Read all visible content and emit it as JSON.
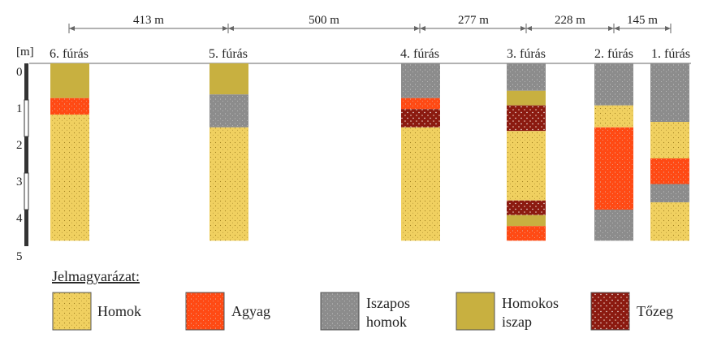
{
  "materials": {
    "homok": {
      "label_lines": [
        "Homok"
      ],
      "color": "#F0D060",
      "texture": "dots-dark"
    },
    "agyag": {
      "label_lines": [
        "Agyag"
      ],
      "color": "#FF4A14",
      "texture": "dots-light"
    },
    "iszapos": {
      "label_lines": [
        "Iszapos",
        "homok"
      ],
      "color": "#8C8C8C",
      "texture": "dots-light"
    },
    "homokos": {
      "label_lines": [
        "Homokos",
        "iszap"
      ],
      "color": "#C8B040",
      "texture": "none"
    },
    "tozeg": {
      "label_lines": [
        "Tőzeg"
      ],
      "color": "#8B1A10",
      "texture": "dots-white"
    }
  },
  "depth_axis": {
    "unit_label": "[m]",
    "ticks": [
      "0",
      "1",
      "2",
      "3",
      "4",
      "5"
    ],
    "max_depth_m": 5
  },
  "boreholes": [
    {
      "name": "6. fúrás",
      "layers": [
        {
          "material": "homokos",
          "from": 0.0,
          "to": 0.95
        },
        {
          "material": "agyag",
          "from": 0.95,
          "to": 1.4
        },
        {
          "material": "homok",
          "from": 1.4,
          "to": 4.85
        }
      ]
    },
    {
      "name": "5. fúrás",
      "layers": [
        {
          "material": "homokos",
          "from": 0.0,
          "to": 0.85
        },
        {
          "material": "iszapos",
          "from": 0.85,
          "to": 1.75
        },
        {
          "material": "homok",
          "from": 1.75,
          "to": 4.85
        }
      ]
    },
    {
      "name": "4. fúrás",
      "layers": [
        {
          "material": "iszapos",
          "from": 0.0,
          "to": 0.95
        },
        {
          "material": "agyag",
          "from": 0.95,
          "to": 1.25
        },
        {
          "material": "tozeg",
          "from": 1.25,
          "to": 1.75
        },
        {
          "material": "homok",
          "from": 1.75,
          "to": 4.85
        }
      ]
    },
    {
      "name": "3. fúrás",
      "layers": [
        {
          "material": "iszapos",
          "from": 0.0,
          "to": 0.75
        },
        {
          "material": "homokos",
          "from": 0.75,
          "to": 1.15
        },
        {
          "material": "tozeg",
          "from": 1.15,
          "to": 1.85
        },
        {
          "material": "homok",
          "from": 1.85,
          "to": 3.75
        },
        {
          "material": "tozeg",
          "from": 3.75,
          "to": 4.15
        },
        {
          "material": "homokos",
          "from": 4.15,
          "to": 4.45
        },
        {
          "material": "agyag",
          "from": 4.45,
          "to": 4.85
        }
      ]
    },
    {
      "name": "2. fúrás",
      "layers": [
        {
          "material": "iszapos",
          "from": 0.0,
          "to": 1.15
        },
        {
          "material": "homok",
          "from": 1.15,
          "to": 1.75
        },
        {
          "material": "agyag",
          "from": 1.75,
          "to": 4.0
        },
        {
          "material": "iszapos",
          "from": 4.0,
          "to": 4.85
        }
      ]
    },
    {
      "name": "1. fúrás",
      "layers": [
        {
          "material": "iszapos",
          "from": 0.0,
          "to": 1.6
        },
        {
          "material": "homok",
          "from": 1.6,
          "to": 2.6
        },
        {
          "material": "agyag",
          "from": 2.6,
          "to": 3.3
        },
        {
          "material": "iszapos",
          "from": 3.3,
          "to": 3.8
        },
        {
          "material": "homok",
          "from": 3.8,
          "to": 4.85
        }
      ]
    }
  ],
  "distances": [
    "413 m",
    "500 m",
    "277 m",
    "228 m",
    "145 m"
  ],
  "legend": {
    "title": "Jelmagyarázat:",
    "order": [
      "homok",
      "agyag",
      "iszapos",
      "homokos",
      "tozeg"
    ]
  }
}
